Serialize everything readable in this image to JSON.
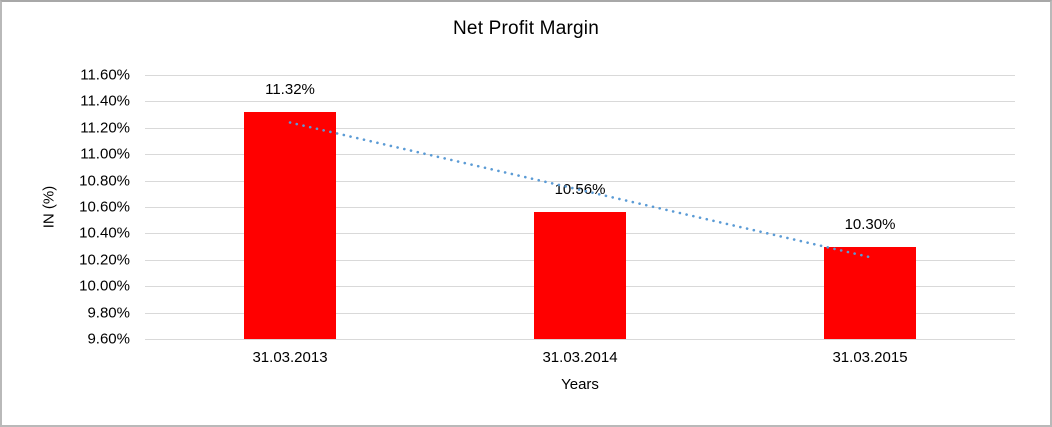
{
  "chart_data": {
    "type": "bar",
    "title": "Net Profit Margin",
    "xlabel": "Years",
    "ylabel": "IN (%)",
    "categories": [
      "31.03.2013",
      "31.03.2014",
      "31.03.2015"
    ],
    "values": [
      11.32,
      10.56,
      10.3
    ],
    "data_labels": [
      "11.32%",
      "10.56%",
      "10.30%"
    ],
    "ytick_labels": [
      "11.60%",
      "11.40%",
      "11.20%",
      "11.00%",
      "10.80%",
      "10.60%",
      "10.40%",
      "10.20%",
      "10.00%",
      "9.80%",
      "9.60%"
    ],
    "ytick_values": [
      11.6,
      11.4,
      11.2,
      11.0,
      10.8,
      10.6,
      10.4,
      10.2,
      10.0,
      9.8,
      9.6
    ],
    "ylim": [
      9.6,
      11.6
    ],
    "grid": true,
    "legend": "none",
    "bar_color": "#ff0000",
    "gridline_color": "#d9d9d9",
    "text_color": "#000000",
    "trendline": {
      "type": "linear",
      "style": "dotted",
      "color": "#5b9bd5",
      "start_value": 11.24,
      "end_value": 10.22
    }
  }
}
